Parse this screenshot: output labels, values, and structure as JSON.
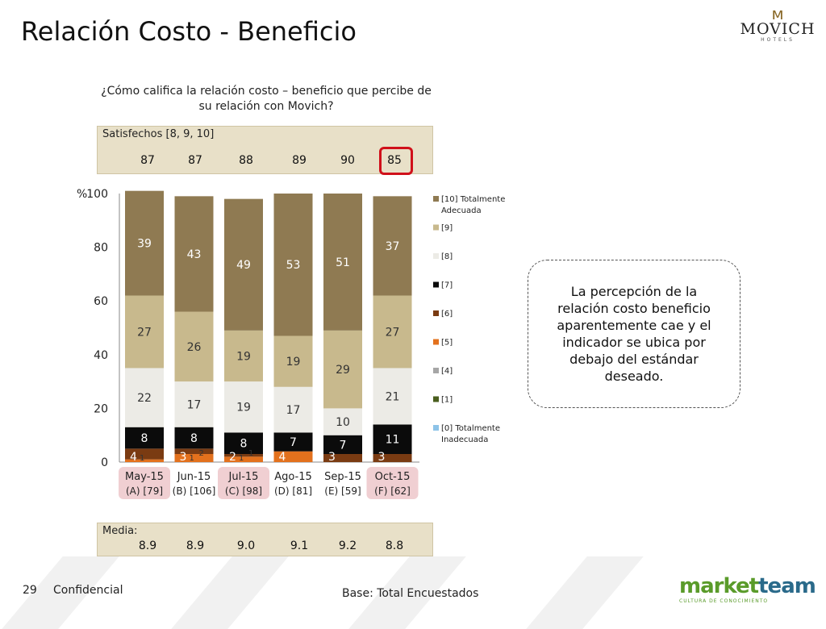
{
  "header": {
    "title": "Relación Costo - Beneficio",
    "logo_name": "MOVICH",
    "logo_sub": "HOTELS"
  },
  "question": "¿Cómo califica la relación costo – beneficio que percibe de su relación con Movich?",
  "satisfechos": {
    "label": "Satisfechos [8, 9, 10]",
    "values": [
      "87",
      "87",
      "88",
      "89",
      "90",
      "85"
    ],
    "highlight_color": "#d0101a"
  },
  "media": {
    "label": "Media:",
    "values": [
      "8.9",
      "8.9",
      "9.0",
      "9.1",
      "9.2",
      "8.8"
    ]
  },
  "callout": "La percepción de la relación costo beneficio aparentemente cae y el indicador se ubica por debajo del estándar deseado.",
  "footer": {
    "page": "29",
    "confidential": "Confidencial",
    "base": "Base: Total Encuestados",
    "brand_a": "market",
    "brand_b": "team",
    "brand_tag": "CULTURA DE CONOCIMIENTO"
  },
  "chart_data": {
    "type": "bar",
    "stacked": true,
    "ylabel": "%",
    "ylim": [
      0,
      100
    ],
    "yticks": [
      0,
      20,
      40,
      60,
      80,
      100
    ],
    "categories": [
      "May-15",
      "Jun-15",
      "Jul-15",
      "Ago-15",
      "Sep-15",
      "Oct-15"
    ],
    "category_sub": [
      "(A) [79]",
      "(B) [106]",
      "(C) [98]",
      "(D) [81]",
      "(E) [59]",
      "(F) [62]"
    ],
    "highlighted_categories": [
      0,
      2,
      5
    ],
    "legend_position": "right",
    "series": [
      {
        "name": "[0] Totalmente Inadecuada",
        "color": "#8dc3e8",
        "values": [
          0,
          0,
          0,
          0,
          0,
          0
        ]
      },
      {
        "name": "[1]",
        "color": "#4a5e1e",
        "values": [
          0,
          0,
          0,
          0,
          0,
          0
        ]
      },
      {
        "name": "[4]",
        "color": "#a6a6a6",
        "values": [
          0,
          0,
          0,
          0,
          0,
          0
        ]
      },
      {
        "name": "[5]",
        "color": "#e3711d",
        "values": [
          1,
          3,
          2,
          4,
          0,
          0
        ]
      },
      {
        "name": "[6]",
        "color": "#7a3b12",
        "values": [
          4,
          2,
          1,
          0,
          3,
          3
        ]
      },
      {
        "name": "[7]",
        "color": "#0b0b0b",
        "values": [
          8,
          8,
          8,
          7,
          7,
          11
        ]
      },
      {
        "name": "[8]",
        "color": "#ecebe6",
        "values": [
          22,
          17,
          19,
          17,
          10,
          21
        ]
      },
      {
        "name": "[9]",
        "color": "#c8b98d",
        "values": [
          27,
          26,
          19,
          19,
          29,
          27
        ]
      },
      {
        "name": "[10] Totalmente Adecuada",
        "color": "#8f7a52",
        "values": [
          39,
          43,
          49,
          53,
          51,
          37
        ]
      }
    ],
    "small_labels": [
      [
        "4",
        "1"
      ],
      [
        "3",
        "1",
        "2"
      ],
      [
        "2",
        "1",
        "1"
      ],
      [
        "4"
      ],
      [
        "3"
      ],
      [
        "3"
      ]
    ]
  }
}
